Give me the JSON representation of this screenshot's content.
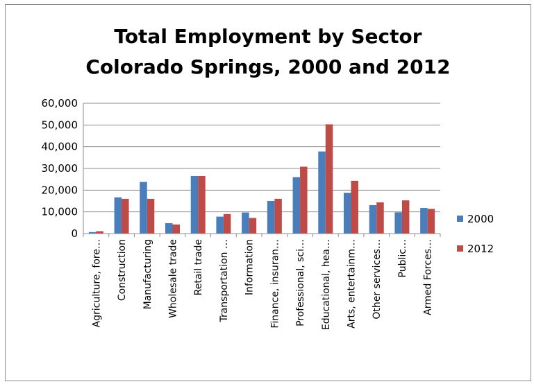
{
  "chart_data": {
    "type": "bar",
    "title": [
      "Total Employment by Sector",
      "Colorado Springs, 2000 and 2012"
    ],
    "categories": [
      "Agriculture, fore…",
      "Construction",
      "Manufacturing",
      "Wholesale trade",
      "Retail trade",
      "Transportation …",
      "Information",
      "Finance, insuran…",
      "Professional, sci…",
      "Educational, hea…",
      "Arts, entertainm…",
      "Other services…",
      "Public…",
      "Armed Forces…"
    ],
    "series": [
      {
        "name": "2000",
        "color": "#4a7ebb",
        "values": [
          700,
          16700,
          23800,
          4800,
          26500,
          7800,
          9700,
          15000,
          26000,
          37800,
          18800,
          13100,
          9800,
          11800
        ]
      },
      {
        "name": "2012",
        "color": "#be4b48",
        "values": [
          1100,
          16000,
          16000,
          4200,
          26500,
          9000,
          7200,
          16000,
          30800,
          50300,
          24300,
          14400,
          15300,
          11400
        ]
      }
    ],
    "ylim": [
      0,
      60000
    ],
    "yticks": [
      "0",
      "10,000",
      "20,000",
      "30,000",
      "40,000",
      "50,000",
      "60,000"
    ],
    "ytick_values": [
      0,
      10000,
      20000,
      30000,
      40000,
      50000,
      60000
    ],
    "grid": true,
    "legend_position": "right"
  }
}
